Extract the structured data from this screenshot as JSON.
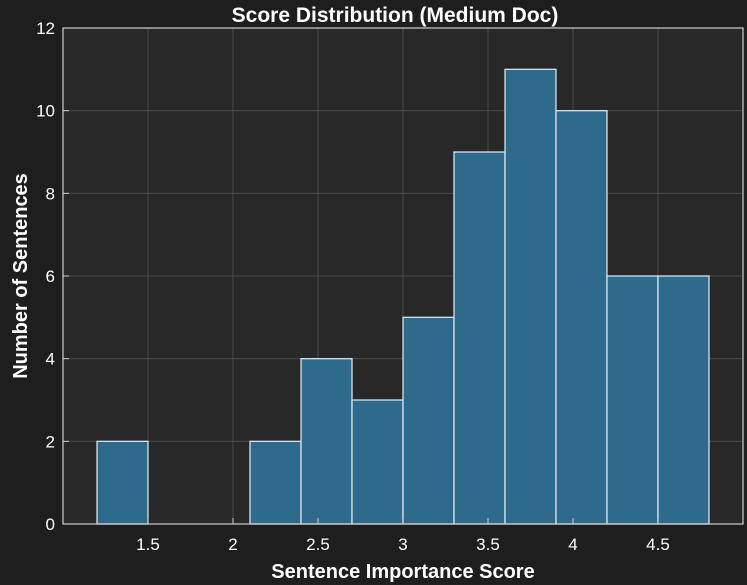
{
  "chart_data": {
    "type": "bar",
    "title": "Score Distribution (Medium Doc)",
    "xlabel": "Sentence Importance Score",
    "ylabel": "Number of Sentences",
    "bins": [
      {
        "start": 1.2,
        "end": 1.5,
        "count": 2
      },
      {
        "start": 1.5,
        "end": 1.8,
        "count": 0
      },
      {
        "start": 1.8,
        "end": 2.1,
        "count": 0
      },
      {
        "start": 2.1,
        "end": 2.4,
        "count": 2
      },
      {
        "start": 2.4,
        "end": 2.7,
        "count": 4
      },
      {
        "start": 2.7,
        "end": 3.0,
        "count": 3
      },
      {
        "start": 3.0,
        "end": 3.3,
        "count": 5
      },
      {
        "start": 3.3,
        "end": 3.6,
        "count": 9
      },
      {
        "start": 3.6,
        "end": 3.9,
        "count": 11
      },
      {
        "start": 3.9,
        "end": 4.2,
        "count": 10
      },
      {
        "start": 4.2,
        "end": 4.5,
        "count": 6
      },
      {
        "start": 4.5,
        "end": 4.8,
        "count": 6
      }
    ],
    "xlim": [
      1.0,
      5.0
    ],
    "ylim": [
      0,
      12
    ],
    "xticks": [
      1.5,
      2,
      2.5,
      3,
      3.5,
      4,
      4.5
    ],
    "xtick_labels": [
      "1.5",
      "2",
      "2.5",
      "3",
      "3.5",
      "4",
      "4.5"
    ],
    "yticks": [
      0,
      2,
      4,
      6,
      8,
      10,
      12
    ],
    "ytick_labels": [
      "0",
      "2",
      "4",
      "6",
      "8",
      "10",
      "12"
    ],
    "grid": true,
    "colors": {
      "background": "#1e1e1e",
      "plot_background": "#282828",
      "bar_fill": "#2e6a8c",
      "bar_edge": "#d8e2ea",
      "grid": "#4a4a4a",
      "axis": "#cfcfcf",
      "text": "#ffffff"
    }
  }
}
